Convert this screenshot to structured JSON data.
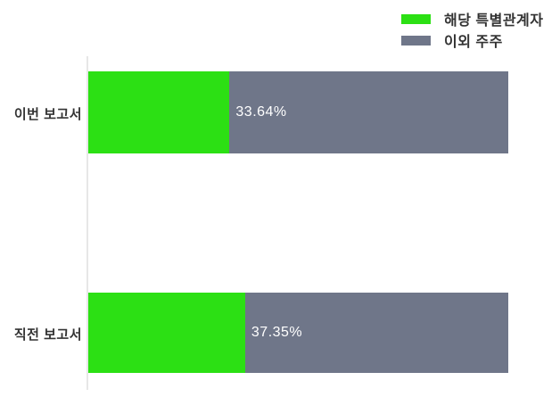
{
  "chart_data": {
    "type": "bar",
    "orientation": "horizontal",
    "stacked": true,
    "title": "",
    "xlabel": "",
    "ylabel": "",
    "xlim": [
      0,
      100
    ],
    "grid": false,
    "legend_position": "top-right",
    "categories": [
      "이번 보고서",
      "직전 보고서"
    ],
    "series": [
      {
        "name": "해당 특별관계자",
        "color": "#2ce014",
        "values": [
          33.64,
          37.35
        ]
      },
      {
        "name": "이외 주주",
        "color": "#6f7689",
        "values": [
          66.36,
          62.65
        ]
      }
    ],
    "data_labels": [
      "33.64%",
      "37.35%"
    ]
  },
  "colors": {
    "green_series": "#2ce014",
    "gray_series": "#6f7689",
    "category_text": "#333333",
    "value_label_text": "#ffffff",
    "axis_line": "#e7e7e7",
    "background": "#ffffff"
  }
}
